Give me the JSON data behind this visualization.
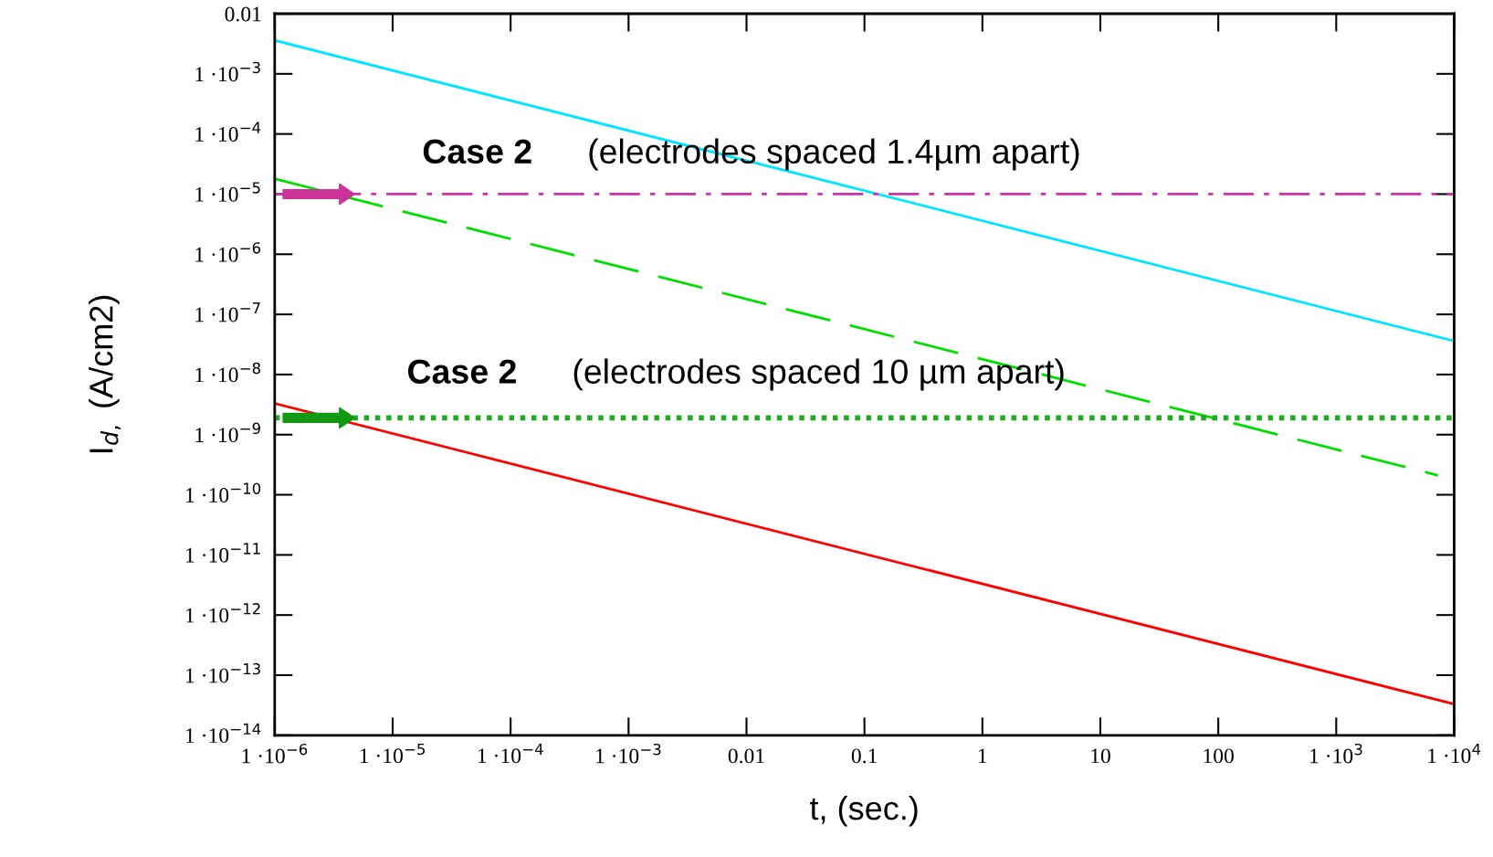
{
  "chart_data": {
    "type": "line",
    "xlabel": "t, (sec.)",
    "ylabel": "I$_{d,}$ (A/cm2)",
    "log": "xy",
    "grid": false,
    "legend": false,
    "xlim": [
      1e-06,
      10000.0
    ],
    "ylim": [
      1e-14,
      0.01
    ],
    "xticks": [
      {
        "value": 1e-06,
        "label": "1 ·10$^{−6}$"
      },
      {
        "value": 1e-05,
        "label": "1 ·10$^{−5}$"
      },
      {
        "value": 0.0001,
        "label": "1 ·10$^{−4}$"
      },
      {
        "value": 0.001,
        "label": "1 ·10$^{−3}$"
      },
      0.01,
      0.1,
      1,
      10,
      100,
      {
        "value": 1000,
        "label": "1 ·10$^{3}$"
      },
      {
        "value": 10000,
        "label": "1 ·10$^{4}$"
      }
    ],
    "yticks": [
      {
        "value": 1e-14,
        "label": "1 ·10$^{−14}$"
      },
      {
        "value": 1e-13,
        "label": "1 ·10$^{−13}$"
      },
      {
        "value": 1e-12,
        "label": "1 ·10$^{−12}$"
      },
      {
        "value": 1e-11,
        "label": "1 ·10$^{−11}$"
      },
      {
        "value": 1e-10,
        "label": "1 ·10$^{−10}$"
      },
      {
        "value": 1e-09,
        "label": "1 ·10$^{−9}$"
      },
      {
        "value": 1e-08,
        "label": "1 ·10$^{−8}$"
      },
      {
        "value": 1e-07,
        "label": "1 ·10$^{−7}$"
      },
      {
        "value": 1e-06,
        "label": "1 ·10$^{−6}$"
      },
      {
        "value": 1e-05,
        "label": "1 ·10$^{−5}$"
      },
      {
        "value": 0.0001,
        "label": "1 ·10$^{−4}$"
      },
      {
        "value": 0.001,
        "label": "1 ·10$^{−3}$"
      },
      0.01
    ],
    "annotations": [
      "Case 2",
      "(electrodes spaced 1.4µm apart)",
      "Case 2",
      "(electrodes spaced 10 µm apart)"
    ],
    "series": [
      {
        "color": "#00e5ff",
        "line_style": "solid",
        "x": [
          1e-06,
          10000.0
        ],
        "values": [
          0.0036,
          3.6e-08
        ]
      },
      {
        "color": "#00dd00",
        "line_style": "dashed",
        "x": [
          1e-06,
          7300
        ],
        "values": [
          1.8e-05,
          2.1e-10
        ]
      },
      {
        "color": "#ff0000",
        "line_style": "solid",
        "x": [
          1e-06,
          10000.0
        ],
        "values": [
          3.3e-09,
          3.3e-14
        ]
      },
      {
        "color": "#cc33aa",
        "line_style": "dashdot",
        "x": [
          1e-06,
          10000.0
        ],
        "values": [
          1e-05,
          1e-05
        ]
      },
      {
        "color": "#22aa22",
        "line_style": "dotted",
        "x": [
          1e-06,
          10000.0
        ],
        "values": [
          1.9e-09,
          1.9e-09
        ]
      }
    ]
  }
}
